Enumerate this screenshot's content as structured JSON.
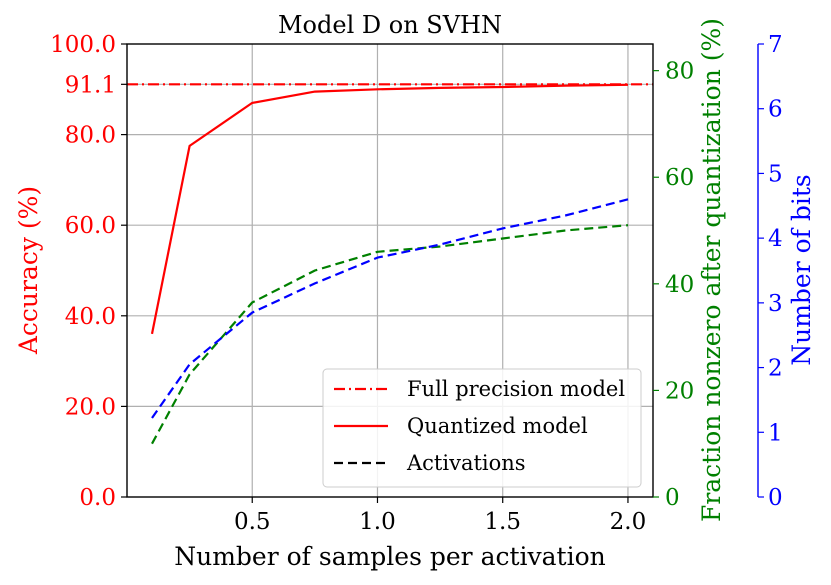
{
  "chart_data": {
    "type": "line",
    "title": "Model D on SVHN",
    "xlabel": "Number of samples per activation",
    "xlim": [
      0.0,
      2.1
    ],
    "x_ticks": [
      {
        "value": 0.5,
        "label": "0.5"
      },
      {
        "value": 1.0,
        "label": "1.0"
      },
      {
        "value": 1.5,
        "label": "1.5"
      },
      {
        "value": 2.0,
        "label": "2.0"
      }
    ],
    "grid": true,
    "axes": {
      "accuracy": {
        "label": "Accuracy (%)",
        "color": "#ff0000",
        "ylim": [
          0,
          100
        ],
        "ticks": [
          {
            "value": 0,
            "label": "0.0"
          },
          {
            "value": 20,
            "label": "20.0"
          },
          {
            "value": 40,
            "label": "40.0"
          },
          {
            "value": 60,
            "label": "60.0"
          },
          {
            "value": 80,
            "label": "80.0"
          },
          {
            "value": 91.1,
            "label": "91.1"
          },
          {
            "value": 100,
            "label": "100.0"
          }
        ]
      },
      "fraction": {
        "label": "Fraction nonzero after quantization (%)",
        "color": "#008000",
        "ylim": [
          0,
          85
        ],
        "ticks": [
          {
            "value": 0,
            "label": "0"
          },
          {
            "value": 20,
            "label": "20"
          },
          {
            "value": 40,
            "label": "40"
          },
          {
            "value": 60,
            "label": "60"
          },
          {
            "value": 80,
            "label": "80"
          }
        ]
      },
      "bits": {
        "label": "Number of bits",
        "color": "#0000ff",
        "ylim": [
          0,
          7
        ],
        "ticks": [
          {
            "value": 0,
            "label": "0"
          },
          {
            "value": 1,
            "label": "1"
          },
          {
            "value": 2,
            "label": "2"
          },
          {
            "value": 3,
            "label": "3"
          },
          {
            "value": 4,
            "label": "4"
          },
          {
            "value": 5,
            "label": "5"
          },
          {
            "value": 6,
            "label": "6"
          },
          {
            "value": 7,
            "label": "7"
          }
        ]
      }
    },
    "series": [
      {
        "name": "Full precision model",
        "axis": "accuracy",
        "color": "#ff0000",
        "style": "dashdot",
        "x": [
          0.0,
          2.1
        ],
        "y": [
          91.1,
          91.1
        ]
      },
      {
        "name": "Quantized model",
        "axis": "accuracy",
        "color": "#ff0000",
        "style": "solid",
        "x": [
          0.1,
          0.25,
          0.5,
          0.75,
          1.0,
          1.25,
          1.5,
          1.75,
          2.0
        ],
        "y": [
          36.0,
          77.5,
          87.0,
          89.5,
          90.0,
          90.3,
          90.5,
          90.8,
          91.0
        ]
      },
      {
        "name": "Fraction nonzero",
        "axis": "fraction",
        "color": "#008000",
        "style": "dashed",
        "x": [
          0.1,
          0.25,
          0.5,
          0.75,
          1.0,
          1.25,
          1.5,
          1.75,
          2.0
        ],
        "y": [
          10.0,
          23.0,
          36.5,
          42.5,
          46.0,
          47.0,
          48.5,
          50.0,
          51.0
        ]
      },
      {
        "name": "Number of bits",
        "axis": "bits",
        "color": "#0000ff",
        "style": "dashed",
        "x": [
          0.1,
          0.25,
          0.5,
          0.75,
          1.0,
          1.25,
          1.5,
          1.75,
          2.0
        ],
        "y": [
          1.22,
          2.05,
          2.85,
          3.3,
          3.7,
          3.9,
          4.15,
          4.35,
          4.6
        ]
      }
    ],
    "legend": {
      "location": "lower-right",
      "entries": [
        {
          "label": "Full precision model",
          "color": "#ff0000",
          "style": "dashdot"
        },
        {
          "label": "Quantized model",
          "color": "#ff0000",
          "style": "solid"
        },
        {
          "label": "Activations",
          "color": "#000000",
          "style": "dashed"
        }
      ]
    }
  }
}
